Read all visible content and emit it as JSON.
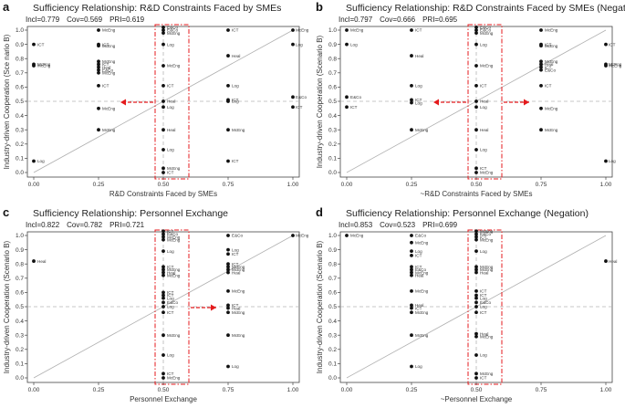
{
  "chart_data": [
    {
      "type": "scatter",
      "panel": "a",
      "title": "Sufficiency Relationship: R&D Constraints Faced by SMEs",
      "stats": {
        "incl": "0.779",
        "cov": "0.569",
        "pri": "0.619"
      },
      "stats_labels": {
        "incl": "Incl=",
        "cov": "Cov=",
        "pri": "PRI="
      },
      "xlabel": "R&D Constraints Faced by SMEs",
      "ylabel": "Industry-driven Cooperation (Sce nario B)",
      "xlim": [
        0,
        1
      ],
      "ylim": [
        0,
        1
      ],
      "xticks": [
        "0.00",
        "0.25",
        "0.50",
        "0.75",
        "1.00"
      ],
      "yticks": [
        "0.0",
        "0.1",
        "0.2",
        "0.3",
        "0.4",
        "0.5",
        "0.6",
        "0.7",
        "0.8",
        "0.9",
        "1.0"
      ],
      "arrow": "left",
      "points": [
        {
          "x": 0.0,
          "y": 0.08,
          "label": "Log"
        },
        {
          "x": 0.0,
          "y": 0.9,
          "label": "ICT"
        },
        {
          "x": 0.0,
          "y": 0.76,
          "label": "McEng"
        },
        {
          "x": 0.0,
          "y": 0.75,
          "label": "McEng"
        },
        {
          "x": 0.25,
          "y": 1.0,
          "label": "McEng"
        },
        {
          "x": 0.25,
          "y": 0.9,
          "label": "ICT"
        },
        {
          "x": 0.25,
          "y": 0.89,
          "label": "McEng"
        },
        {
          "x": 0.25,
          "y": 0.78,
          "label": "McEng"
        },
        {
          "x": 0.25,
          "y": 0.76,
          "label": "ICT"
        },
        {
          "x": 0.25,
          "y": 0.74,
          "label": "Heal"
        },
        {
          "x": 0.25,
          "y": 0.72,
          "label": "E&Co"
        },
        {
          "x": 0.25,
          "y": 0.7,
          "label": "McEng"
        },
        {
          "x": 0.25,
          "y": 0.61,
          "label": "ICT"
        },
        {
          "x": 0.25,
          "y": 0.45,
          "label": "McEng"
        },
        {
          "x": 0.25,
          "y": 0.3,
          "label": "McEng"
        },
        {
          "x": 0.5,
          "y": 1.02,
          "label": "E&Co"
        },
        {
          "x": 0.5,
          "y": 1.0,
          "label": "E&Co"
        },
        {
          "x": 0.5,
          "y": 0.98,
          "label": "McEng"
        },
        {
          "x": 0.5,
          "y": 0.9,
          "label": "Log"
        },
        {
          "x": 0.5,
          "y": 0.75,
          "label": "McEng"
        },
        {
          "x": 0.5,
          "y": 0.61,
          "label": "ICT"
        },
        {
          "x": 0.5,
          "y": 0.5,
          "label": "Heal"
        },
        {
          "x": 0.5,
          "y": 0.46,
          "label": "Log"
        },
        {
          "x": 0.5,
          "y": 0.3,
          "label": "Heal"
        },
        {
          "x": 0.5,
          "y": 0.16,
          "label": "Log"
        },
        {
          "x": 0.5,
          "y": 0.03,
          "label": "McEng"
        },
        {
          "x": 0.5,
          "y": 0.0,
          "label": "ICT"
        },
        {
          "x": 0.75,
          "y": 1.0,
          "label": "ICT"
        },
        {
          "x": 0.75,
          "y": 0.82,
          "label": "Heal"
        },
        {
          "x": 0.75,
          "y": 0.61,
          "label": "Log"
        },
        {
          "x": 0.75,
          "y": 0.51,
          "label": "ICT"
        },
        {
          "x": 0.75,
          "y": 0.5,
          "label": "Log"
        },
        {
          "x": 0.75,
          "y": 0.3,
          "label": "McEng"
        },
        {
          "x": 0.75,
          "y": 0.08,
          "label": "ICT"
        },
        {
          "x": 1.0,
          "y": 1.0,
          "label": "McEng"
        },
        {
          "x": 1.0,
          "y": 0.9,
          "label": "Log"
        },
        {
          "x": 1.0,
          "y": 0.53,
          "label": "E&Co"
        },
        {
          "x": 1.0,
          "y": 0.46,
          "label": "ICT"
        }
      ]
    },
    {
      "type": "scatter",
      "panel": "b",
      "title": "Sufficiency Relationship: R&D Constraints Faced by SMEs (Negation)",
      "stats": {
        "incl": "0.797",
        "cov": "0.666",
        "pri": "0.695"
      },
      "stats_labels": {
        "incl": "Incl=",
        "cov": "Cov=",
        "pri": "PRI="
      },
      "xlabel": "~R&D Constraints Faced by SMEs",
      "ylabel": "Industry-driven Cooperation (Scenario B)",
      "xlim": [
        0,
        1
      ],
      "ylim": [
        0,
        1
      ],
      "xticks": [
        "0.00",
        "0.25",
        "0.50",
        "0.75",
        "1.00"
      ],
      "yticks": [
        "0.0",
        "0.1",
        "0.2",
        "0.3",
        "0.4",
        "0.5",
        "0.6",
        "0.7",
        "0.8",
        "0.9",
        "1.0"
      ],
      "arrow": "both",
      "points": [
        {
          "x": 0.0,
          "y": 1.0,
          "label": "McEng"
        },
        {
          "x": 0.0,
          "y": 0.9,
          "label": "Log"
        },
        {
          "x": 0.0,
          "y": 0.53,
          "label": "E&Co"
        },
        {
          "x": 0.0,
          "y": 0.46,
          "label": "ICT"
        },
        {
          "x": 0.25,
          "y": 1.0,
          "label": "ICT"
        },
        {
          "x": 0.25,
          "y": 0.82,
          "label": "Heal"
        },
        {
          "x": 0.25,
          "y": 0.61,
          "label": "Log"
        },
        {
          "x": 0.25,
          "y": 0.51,
          "label": "ICT"
        },
        {
          "x": 0.25,
          "y": 0.49,
          "label": "Log"
        },
        {
          "x": 0.25,
          "y": 0.3,
          "label": "McEng"
        },
        {
          "x": 0.5,
          "y": 1.02,
          "label": "E&Co"
        },
        {
          "x": 0.5,
          "y": 1.0,
          "label": "E&Co"
        },
        {
          "x": 0.5,
          "y": 0.98,
          "label": "McEng"
        },
        {
          "x": 0.5,
          "y": 0.9,
          "label": "Log"
        },
        {
          "x": 0.5,
          "y": 0.75,
          "label": "McEng"
        },
        {
          "x": 0.5,
          "y": 0.61,
          "label": "ICT"
        },
        {
          "x": 0.5,
          "y": 0.5,
          "label": "Heal"
        },
        {
          "x": 0.5,
          "y": 0.46,
          "label": "Log"
        },
        {
          "x": 0.5,
          "y": 0.3,
          "label": "Heal"
        },
        {
          "x": 0.5,
          "y": 0.16,
          "label": "Log"
        },
        {
          "x": 0.5,
          "y": 0.03,
          "label": "ICT"
        },
        {
          "x": 0.5,
          "y": 0.0,
          "label": "McEng"
        },
        {
          "x": 0.75,
          "y": 1.0,
          "label": "McEng"
        },
        {
          "x": 0.75,
          "y": 0.9,
          "label": "ICT"
        },
        {
          "x": 0.75,
          "y": 0.89,
          "label": "McEng"
        },
        {
          "x": 0.75,
          "y": 0.78,
          "label": "McEng"
        },
        {
          "x": 0.75,
          "y": 0.76,
          "label": "Heal"
        },
        {
          "x": 0.75,
          "y": 0.74,
          "label": "ICT"
        },
        {
          "x": 0.75,
          "y": 0.72,
          "label": "E&Co"
        },
        {
          "x": 0.75,
          "y": 0.61,
          "label": "ICT"
        },
        {
          "x": 0.75,
          "y": 0.45,
          "label": "McEng"
        },
        {
          "x": 0.75,
          "y": 0.3,
          "label": "McEng"
        },
        {
          "x": 1.0,
          "y": 0.9,
          "label": "ICT"
        },
        {
          "x": 1.0,
          "y": 0.76,
          "label": "McEng"
        },
        {
          "x": 1.0,
          "y": 0.75,
          "label": "McEng"
        },
        {
          "x": 1.0,
          "y": 0.08,
          "label": "Log"
        }
      ]
    },
    {
      "type": "scatter",
      "panel": "c",
      "title": "Sufficiency Relationship: Personnel Exchange",
      "stats": {
        "incl": "0.822",
        "cov": "0.782",
        "pri": "0.721"
      },
      "stats_labels": {
        "incl": "Incl=",
        "cov": "Cov=",
        "pri": "PRI="
      },
      "xlabel": "Personnel Exchange",
      "ylabel": "Industry-driven Cooperation (Scenario B)",
      "xlim": [
        0,
        1
      ],
      "ylim": [
        0,
        1
      ],
      "xticks": [
        "0.00",
        "0.25",
        "0.50",
        "0.75",
        "1.00"
      ],
      "yticks": [
        "0.0",
        "0.1",
        "0.2",
        "0.3",
        "0.4",
        "0.5",
        "0.6",
        "0.7",
        "0.8",
        "0.9",
        "1.0"
      ],
      "arrow": "right",
      "points": [
        {
          "x": 0.0,
          "y": 0.82,
          "label": "Heal"
        },
        {
          "x": 0.5,
          "y": 1.03,
          "label": "ICT"
        },
        {
          "x": 0.5,
          "y": 1.01,
          "label": "E&Co"
        },
        {
          "x": 0.5,
          "y": 0.99,
          "label": "McEng"
        },
        {
          "x": 0.5,
          "y": 0.97,
          "label": "McEng"
        },
        {
          "x": 0.5,
          "y": 0.89,
          "label": "Log"
        },
        {
          "x": 0.5,
          "y": 0.78,
          "label": "ICT"
        },
        {
          "x": 0.5,
          "y": 0.76,
          "label": "McEng"
        },
        {
          "x": 0.5,
          "y": 0.74,
          "label": "Heal"
        },
        {
          "x": 0.5,
          "y": 0.72,
          "label": "McEng"
        },
        {
          "x": 0.5,
          "y": 0.6,
          "label": "ICT"
        },
        {
          "x": 0.5,
          "y": 0.58,
          "label": "ICT"
        },
        {
          "x": 0.5,
          "y": 0.56,
          "label": "Log"
        },
        {
          "x": 0.5,
          "y": 0.53,
          "label": "E&Co"
        },
        {
          "x": 0.5,
          "y": 0.5,
          "label": "Log"
        },
        {
          "x": 0.5,
          "y": 0.46,
          "label": "ICT"
        },
        {
          "x": 0.5,
          "y": 0.3,
          "label": "McEng"
        },
        {
          "x": 0.5,
          "y": 0.16,
          "label": "Log"
        },
        {
          "x": 0.5,
          "y": 0.03,
          "label": "ICT"
        },
        {
          "x": 0.5,
          "y": 0.0,
          "label": "McEng"
        },
        {
          "x": 0.75,
          "y": 1.0,
          "label": "E&Co"
        },
        {
          "x": 0.75,
          "y": 0.9,
          "label": "Log"
        },
        {
          "x": 0.75,
          "y": 0.87,
          "label": "ICT"
        },
        {
          "x": 0.75,
          "y": 0.8,
          "label": "ICT"
        },
        {
          "x": 0.75,
          "y": 0.78,
          "label": "McEng"
        },
        {
          "x": 0.75,
          "y": 0.76,
          "label": "McEng"
        },
        {
          "x": 0.75,
          "y": 0.74,
          "label": "Heal"
        },
        {
          "x": 0.75,
          "y": 0.61,
          "label": "McEng"
        },
        {
          "x": 0.75,
          "y": 0.51,
          "label": "ICT"
        },
        {
          "x": 0.75,
          "y": 0.49,
          "label": "Heal"
        },
        {
          "x": 0.75,
          "y": 0.46,
          "label": "McEng"
        },
        {
          "x": 0.75,
          "y": 0.3,
          "label": "McEng"
        },
        {
          "x": 0.75,
          "y": 0.08,
          "label": "Log"
        },
        {
          "x": 1.0,
          "y": 1.0,
          "label": "McEng"
        }
      ]
    },
    {
      "type": "scatter",
      "panel": "d",
      "title": "Sufficiency Relationship: Personnel Exchange (Negation)",
      "stats": {
        "incl": "0.853",
        "cov": "0.523",
        "pri": "0.699"
      },
      "stats_labels": {
        "incl": "Incl=",
        "cov": "Cov=",
        "pri": "PRI="
      },
      "xlabel": "~Personnel Exchange",
      "ylabel": "Industry-driven Cooperation (Scenario B)",
      "xlim": [
        0,
        1
      ],
      "ylim": [
        0,
        1
      ],
      "xticks": [
        "0.00",
        "0.25",
        "0.50",
        "0.75",
        "1.00"
      ],
      "yticks": [
        "0.0",
        "0.1",
        "0.2",
        "0.3",
        "0.4",
        "0.5",
        "0.6",
        "0.7",
        "0.8",
        "0.9",
        "1.0"
      ],
      "arrow": "none",
      "points": [
        {
          "x": 0.0,
          "y": 1.0,
          "label": "McEng"
        },
        {
          "x": 0.25,
          "y": 1.0,
          "label": "E&Co"
        },
        {
          "x": 0.25,
          "y": 0.95,
          "label": "McEng"
        },
        {
          "x": 0.25,
          "y": 0.89,
          "label": "Log"
        },
        {
          "x": 0.25,
          "y": 0.86,
          "label": "ICT"
        },
        {
          "x": 0.25,
          "y": 0.78,
          "label": "ICT"
        },
        {
          "x": 0.25,
          "y": 0.76,
          "label": "E&Co"
        },
        {
          "x": 0.25,
          "y": 0.74,
          "label": "McEng"
        },
        {
          "x": 0.25,
          "y": 0.72,
          "label": "Heal"
        },
        {
          "x": 0.25,
          "y": 0.61,
          "label": "McEng"
        },
        {
          "x": 0.25,
          "y": 0.51,
          "label": "Heal"
        },
        {
          "x": 0.25,
          "y": 0.49,
          "label": "ICT"
        },
        {
          "x": 0.25,
          "y": 0.46,
          "label": "McEng"
        },
        {
          "x": 0.25,
          "y": 0.3,
          "label": "McEng"
        },
        {
          "x": 0.25,
          "y": 0.08,
          "label": "Log"
        },
        {
          "x": 0.5,
          "y": 1.03,
          "label": "McEng"
        },
        {
          "x": 0.5,
          "y": 1.01,
          "label": "E&Co"
        },
        {
          "x": 0.5,
          "y": 0.99,
          "label": "ICT"
        },
        {
          "x": 0.5,
          "y": 0.97,
          "label": "McEng"
        },
        {
          "x": 0.5,
          "y": 0.89,
          "label": "Log"
        },
        {
          "x": 0.5,
          "y": 0.78,
          "label": "McEng"
        },
        {
          "x": 0.5,
          "y": 0.76,
          "label": "McEng"
        },
        {
          "x": 0.5,
          "y": 0.74,
          "label": "Heal"
        },
        {
          "x": 0.5,
          "y": 0.61,
          "label": "ICT"
        },
        {
          "x": 0.5,
          "y": 0.58,
          "label": "ICT"
        },
        {
          "x": 0.5,
          "y": 0.56,
          "label": "Log"
        },
        {
          "x": 0.5,
          "y": 0.53,
          "label": "E&Co"
        },
        {
          "x": 0.5,
          "y": 0.5,
          "label": "Log"
        },
        {
          "x": 0.5,
          "y": 0.46,
          "label": "ICT"
        },
        {
          "x": 0.5,
          "y": 0.31,
          "label": "Heal"
        },
        {
          "x": 0.5,
          "y": 0.29,
          "label": "McEng"
        },
        {
          "x": 0.5,
          "y": 0.16,
          "label": "Log"
        },
        {
          "x": 0.5,
          "y": 0.03,
          "label": "McEng"
        },
        {
          "x": 0.5,
          "y": 0.0,
          "label": "ICT"
        },
        {
          "x": 1.0,
          "y": 0.82,
          "label": "Heal"
        }
      ]
    }
  ]
}
